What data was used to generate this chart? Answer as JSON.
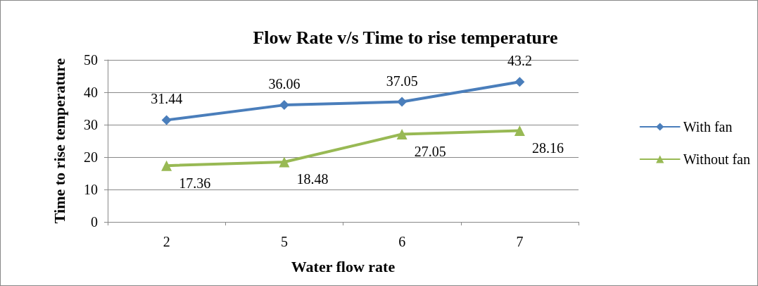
{
  "chart_data": {
    "type": "line",
    "title": "Flow Rate v/s Time to rise temperature",
    "xlabel": "Water flow rate",
    "ylabel": "Time to rise temperature",
    "categories": [
      "2",
      "5",
      "6",
      "7"
    ],
    "series": [
      {
        "name": "With fan",
        "color": "#4a7ebb",
        "marker": "diamond",
        "values": [
          31.44,
          36.06,
          37.05,
          43.2
        ]
      },
      {
        "name": "Without fan",
        "color": "#98b954",
        "marker": "triangle",
        "values": [
          17.36,
          18.48,
          27.05,
          28.16
        ]
      }
    ],
    "ylim": [
      0,
      50
    ],
    "yticks": [
      0,
      10,
      20,
      30,
      40,
      50
    ],
    "grid": "y",
    "legend": "right",
    "data_labels": true
  }
}
